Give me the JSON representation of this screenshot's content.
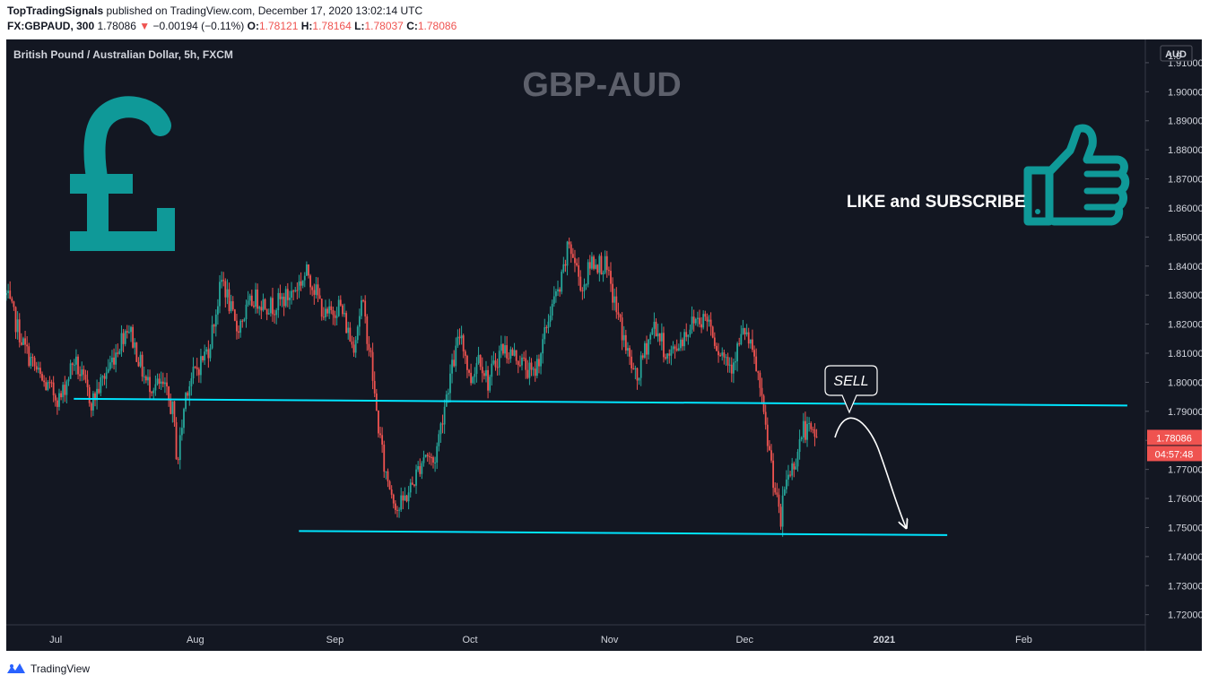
{
  "header": {
    "author": "TopTradingSignals",
    "published_text": "published on TradingView.com, December 17, 2020 13:02:14 UTC",
    "symbol": "FX:GBPAUD, 300",
    "last": "1.78086",
    "change_arrow": "▼",
    "change": "−0.00194 (−0.11%)",
    "o_label": "O:",
    "o_value": "1.78121",
    "h_label": "H:",
    "h_value": "1.78164",
    "l_label": "L:",
    "l_value": "1.78037",
    "c_label": "C:",
    "c_value": "1.78086"
  },
  "footer": {
    "brand": "TradingView",
    "logo_icon": "tradingview-logo-icon"
  },
  "colors": {
    "background": "#131722",
    "up": "#26a69a",
    "down": "#ef5350",
    "trendline": "#00e5ff",
    "accent": "#0f9998",
    "title_grey": "#5d606b"
  },
  "chart_data": {
    "type": "candlestick",
    "instrument": "British Pound / Australian Dollar, 5h, FXCM",
    "title": "GBP-AUD",
    "currency": "AUD",
    "ylim": [
      1.7165,
      1.918
    ],
    "yticks": [
      "1.91000",
      "1.90000",
      "1.89000",
      "1.88000",
      "1.87000",
      "1.86000",
      "1.85000",
      "1.84000",
      "1.83000",
      "1.82000",
      "1.81000",
      "1.80000",
      "1.79000",
      "1.78000",
      "1.77000",
      "1.76000",
      "1.75000",
      "1.74000",
      "1.73000",
      "1.72000"
    ],
    "top_tick_partial": "1.9",
    "xlim": [
      "2020-06-20",
      "2021-02-28"
    ],
    "xticks": [
      {
        "label": "Jul",
        "date": "2020-07-01"
      },
      {
        "label": "Aug",
        "date": "2020-08-01"
      },
      {
        "label": "Sep",
        "date": "2020-09-01"
      },
      {
        "label": "Oct",
        "date": "2020-10-01"
      },
      {
        "label": "Nov",
        "date": "2020-11-01"
      },
      {
        "label": "Dec",
        "date": "2020-12-01"
      },
      {
        "label": "2021",
        "date": "2021-01-01"
      },
      {
        "label": "Feb",
        "date": "2021-02-01"
      }
    ],
    "price_path": [
      [
        "2020-06-20",
        1.83
      ],
      [
        "2020-06-24",
        1.812
      ],
      [
        "2020-06-28",
        1.8
      ],
      [
        "2020-07-02",
        1.794
      ],
      [
        "2020-07-05",
        1.808
      ],
      [
        "2020-07-09",
        1.793
      ],
      [
        "2020-07-13",
        1.806
      ],
      [
        "2020-07-17",
        1.82
      ],
      [
        "2020-07-21",
        1.8
      ],
      [
        "2020-07-25",
        1.798
      ],
      [
        "2020-07-27",
        1.79
      ],
      [
        "2020-07-28",
        1.772
      ],
      [
        "2020-07-30",
        1.798
      ],
      [
        "2020-08-04",
        1.812
      ],
      [
        "2020-08-07",
        1.836
      ],
      [
        "2020-08-10",
        1.818
      ],
      [
        "2020-08-14",
        1.829
      ],
      [
        "2020-08-18",
        1.826
      ],
      [
        "2020-08-22",
        1.83
      ],
      [
        "2020-08-26",
        1.838
      ],
      [
        "2020-08-30",
        1.822
      ],
      [
        "2020-09-02",
        1.827
      ],
      [
        "2020-09-05",
        1.812
      ],
      [
        "2020-09-07",
        1.828
      ],
      [
        "2020-09-09",
        1.808
      ],
      [
        "2020-09-10",
        1.792
      ],
      [
        "2020-09-12",
        1.77
      ],
      [
        "2020-09-15",
        1.756
      ],
      [
        "2020-09-18",
        1.764
      ],
      [
        "2020-09-21",
        1.776
      ],
      [
        "2020-09-23",
        1.772
      ],
      [
        "2020-09-26",
        1.798
      ],
      [
        "2020-09-29",
        1.818
      ],
      [
        "2020-10-01",
        1.8
      ],
      [
        "2020-10-03",
        1.81
      ],
      [
        "2020-10-05",
        1.8
      ],
      [
        "2020-10-08",
        1.812
      ],
      [
        "2020-10-12",
        1.808
      ],
      [
        "2020-10-15",
        1.802
      ],
      [
        "2020-10-17",
        1.812
      ],
      [
        "2020-10-19",
        1.826
      ],
      [
        "2020-10-21",
        1.832
      ],
      [
        "2020-10-23",
        1.848
      ],
      [
        "2020-10-26",
        1.832
      ],
      [
        "2020-10-28",
        1.842
      ],
      [
        "2020-10-31",
        1.84
      ],
      [
        "2020-11-02",
        1.828
      ],
      [
        "2020-11-05",
        1.81
      ],
      [
        "2020-11-07",
        1.8
      ],
      [
        "2020-11-09",
        1.812
      ],
      [
        "2020-11-11",
        1.82
      ],
      [
        "2020-11-14",
        1.808
      ],
      [
        "2020-11-17",
        1.815
      ],
      [
        "2020-11-20",
        1.822
      ],
      [
        "2020-11-23",
        1.822
      ],
      [
        "2020-11-25",
        1.812
      ],
      [
        "2020-11-28",
        1.806
      ],
      [
        "2020-12-01",
        1.818
      ],
      [
        "2020-12-03",
        1.808
      ],
      [
        "2020-12-04",
        1.802
      ],
      [
        "2020-12-05",
        1.79
      ],
      [
        "2020-12-07",
        1.771
      ],
      [
        "2020-12-08",
        1.76
      ],
      [
        "2020-12-09",
        1.751
      ],
      [
        "2020-12-10",
        1.766
      ],
      [
        "2020-12-12",
        1.772
      ],
      [
        "2020-12-14",
        1.784
      ],
      [
        "2020-12-17",
        1.781
      ]
    ],
    "support_line": {
      "start": [
        "2020-08-24",
        1.7488
      ],
      "end": [
        "2021-01-15",
        1.7474
      ]
    },
    "resistance_line": {
      "start": [
        "2020-07-05",
        1.7943
      ],
      "end": [
        "2021-02-24",
        1.792
      ]
    },
    "annotations": {
      "callout": "SELL",
      "cta": "LIKE and SUBSCRIBE",
      "projection": "curved arrow down toward support",
      "symbol_icon": "pound-sign-icon",
      "cta_icon": "thumbs-up-icon"
    },
    "last_price_label": "1.78086",
    "countdown": "04:57:48"
  }
}
